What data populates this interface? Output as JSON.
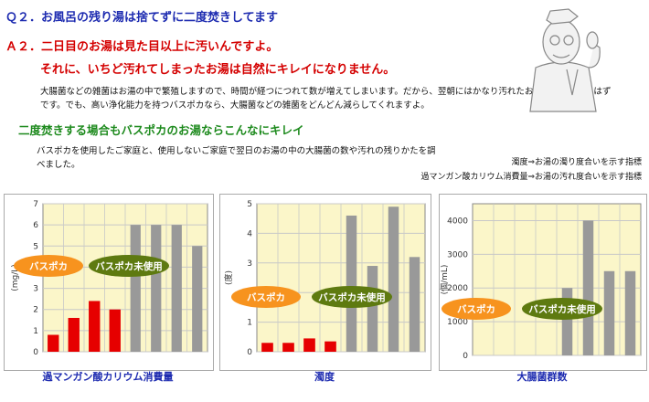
{
  "header": {
    "q": "Ｑ２．お風呂の残り湯は捨てずに二度焚きしてます",
    "a_line1": "Ａ２．二日目のお湯は見た目以上に汚いんですよ。",
    "a_line2": "それに、いちど汚れてしまったお湯は自然にキレイになりません。",
    "body1": "大腸菌などの雑菌はお湯の中で繁殖しますので、時間が経つにつれて数が増えてしまいます。だから、翌朝にはかなり汚れたお湯になっているはずです。でも、高い浄化能力を持つバスポカなら、大腸菌などの雑菌をどんどん減らしてくれますよ。",
    "heading2": "二度焚きする場合もバスポカのお湯ならこんなにキレイ",
    "body2": "バスポカを使用したご家庭と、使用しないご家庭で翌日のお湯の中の大腸菌の数や汚れの残りかたを調べました。",
    "note1": "濁度⇒お湯の濁り度合いを示す指標",
    "note2": "過マンガン酸カリウム消費量⇒お湯の汚れ度合いを示す指標"
  },
  "colors": {
    "plot_bg": "#fbf6c9",
    "grid": "#c8c8c8",
    "bar_used": "#e60000",
    "bar_unused": "#999999",
    "badge_used": "#f7931e",
    "badge_unused": "#5e7a10"
  },
  "badges": {
    "used": "バスポカ",
    "unused": "バスポカ未使用"
  },
  "chart_data": [
    {
      "type": "bar",
      "xlabel": "過マンガン酸カリウム消費量",
      "ylabel": "(mg/L)",
      "ylim": [
        0,
        7
      ],
      "yticks": [
        "0",
        "1",
        "2",
        "3",
        "4",
        "5",
        "6",
        "7"
      ],
      "grid": true,
      "series": [
        {
          "name": "バスポカ",
          "values": [
            0.8,
            1.6,
            2.4,
            2.0
          ]
        },
        {
          "name": "バスポカ未使用",
          "values": [
            6.0,
            6.0,
            6.0,
            5.0
          ]
        }
      ]
    },
    {
      "type": "bar",
      "xlabel": "濁度",
      "ylabel": "(度)",
      "ylim": [
        0,
        5
      ],
      "yticks": [
        "0",
        "1",
        "2",
        "3",
        "4",
        "5"
      ],
      "grid": true,
      "series": [
        {
          "name": "バスポカ",
          "values": [
            0.3,
            0.3,
            0.45,
            0.35
          ]
        },
        {
          "name": "バスポカ未使用",
          "values": [
            4.6,
            2.9,
            4.9,
            3.2
          ]
        }
      ]
    },
    {
      "type": "bar",
      "xlabel": "大腸菌群数",
      "ylabel": "(個/mL)",
      "ylim": [
        0,
        4500
      ],
      "yticks": [
        "0",
        "1000",
        "2000",
        "3000",
        "4000"
      ],
      "grid": true,
      "series": [
        {
          "name": "バスポカ",
          "values": [
            0,
            0,
            0,
            0
          ]
        },
        {
          "name": "バスポカ未使用",
          "values": [
            2000,
            4000,
            2500,
            2500
          ]
        }
      ]
    }
  ]
}
